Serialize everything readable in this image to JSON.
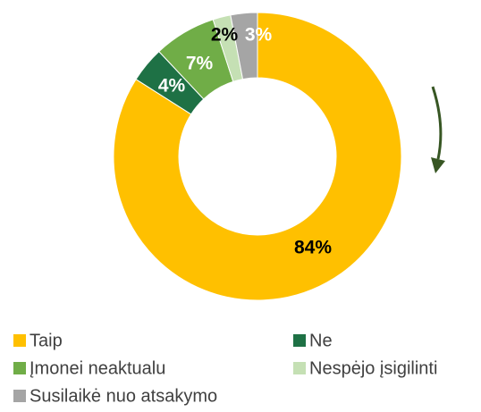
{
  "chart_data": {
    "type": "donut",
    "categories": [
      "Taip",
      "Ne",
      "Įmonei neaktualu",
      "Nespėjo įsigilinti",
      "Susilaikė nuo atsakymo"
    ],
    "values": [
      84,
      4,
      7,
      2,
      3
    ],
    "value_labels": [
      "84%",
      "4%",
      "7%",
      "2%",
      "3%"
    ],
    "colors": [
      "#FFC000",
      "#1E7145",
      "#70AD47",
      "#C5E0B4",
      "#A5A5A5"
    ],
    "legend": "bottom"
  }
}
